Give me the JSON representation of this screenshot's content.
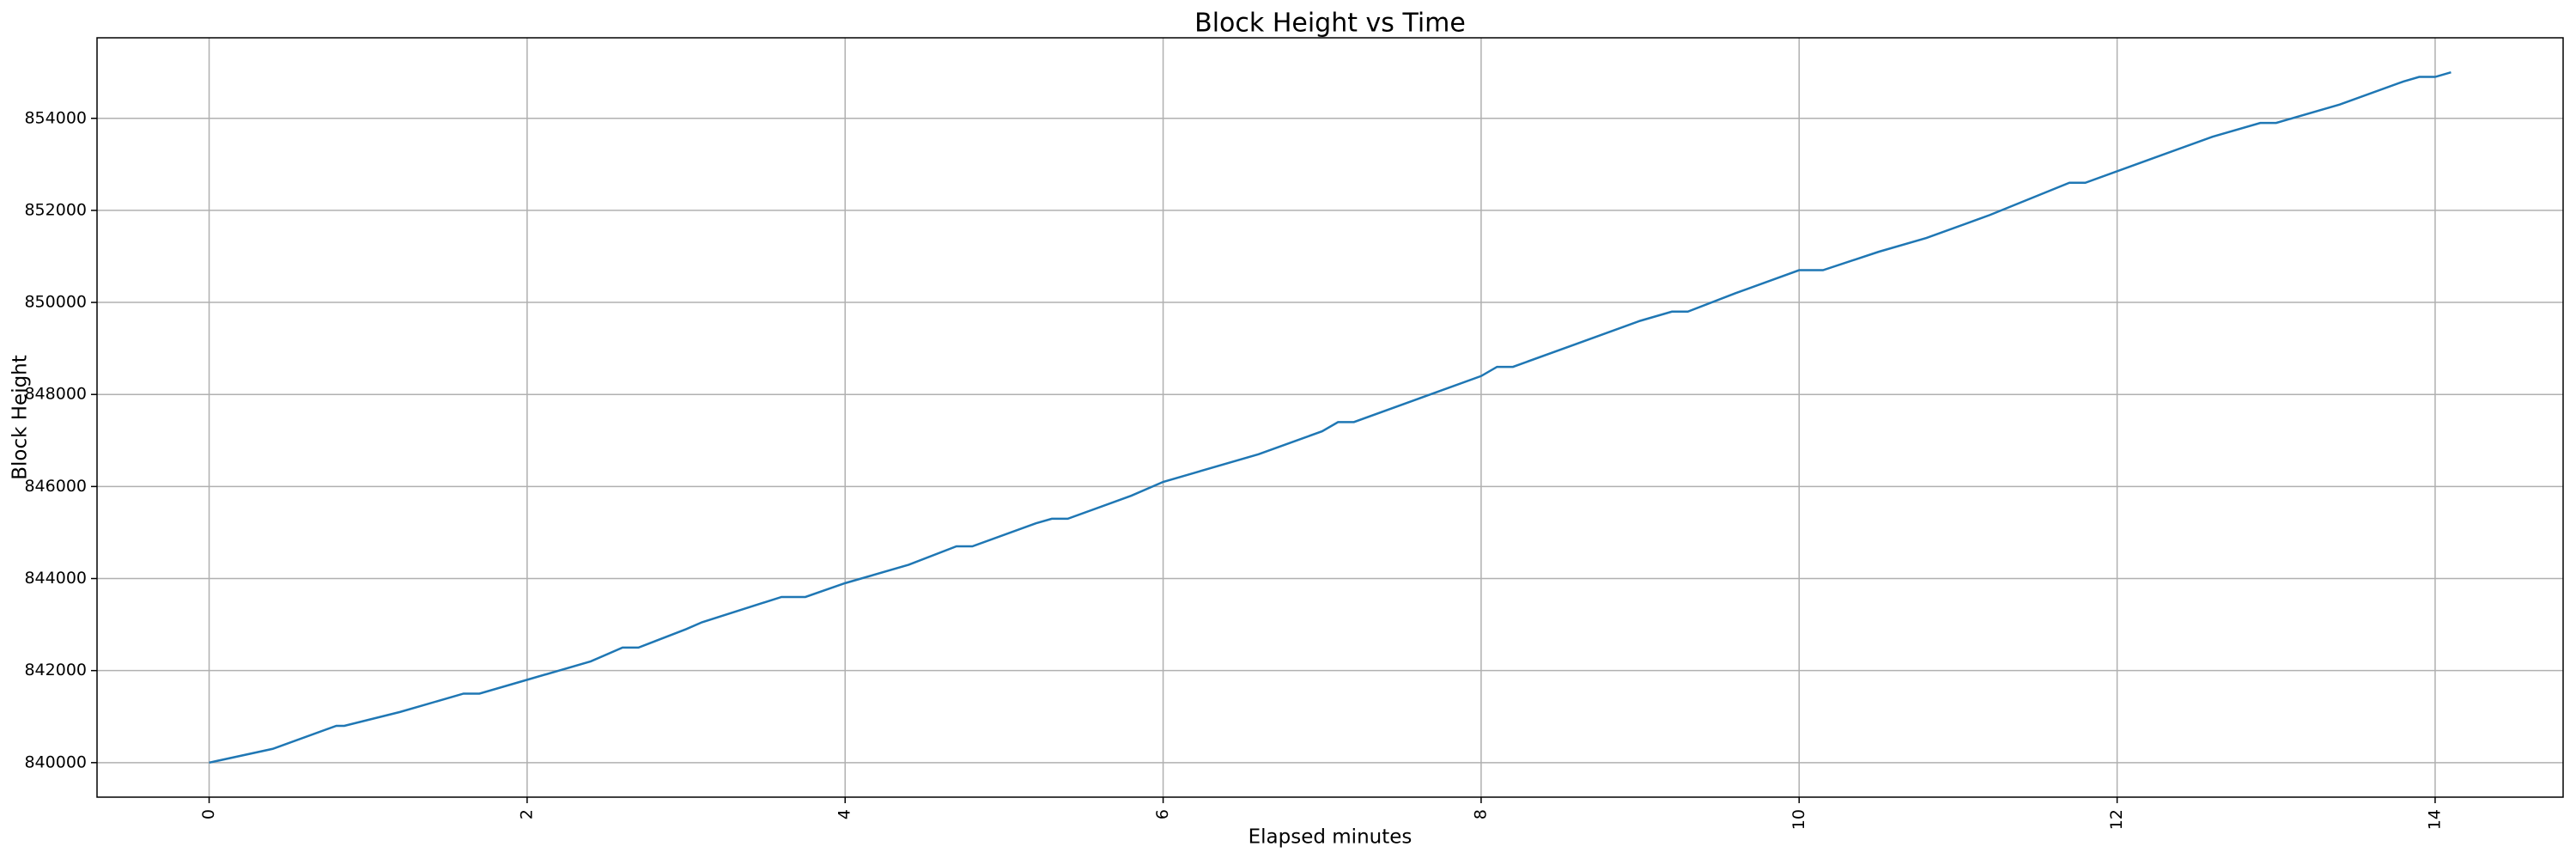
{
  "chart_data": {
    "type": "line",
    "title": "Block Height vs Time",
    "x_label": "Elapsed minutes",
    "y_label": "Block Height",
    "x": [
      0,
      0.4,
      0.8,
      0.85,
      1.2,
      1.6,
      1.7,
      2.0,
      2.4,
      2.6,
      2.7,
      3.0,
      3.1,
      3.6,
      3.75,
      4.0,
      4.4,
      4.7,
      4.8,
      5.2,
      5.3,
      5.4,
      5.8,
      6.0,
      6.2,
      6.6,
      7.0,
      7.1,
      7.2,
      7.6,
      8.0,
      8.1,
      8.2,
      8.6,
      9.0,
      9.2,
      9.3,
      9.6,
      10.0,
      10.15,
      10.5,
      10.8,
      11.2,
      11.7,
      11.8,
      12.2,
      12.6,
      12.9,
      13.0,
      13.4,
      13.8,
      13.9,
      14.0,
      14.1
    ],
    "series": [
      {
        "name": "Block Height",
        "color": "#1f77b4",
        "values": [
          840000,
          840300,
          840800,
          840800,
          841100,
          841500,
          841500,
          841800,
          842200,
          842500,
          842500,
          842900,
          843050,
          843600,
          843600,
          843900,
          844300,
          844700,
          844700,
          845200,
          845300,
          845300,
          845800,
          846100,
          846300,
          846700,
          847200,
          847400,
          847400,
          847900,
          848400,
          848600,
          848600,
          849100,
          849600,
          849800,
          849800,
          850200,
          850700,
          850700,
          851100,
          851400,
          851900,
          852600,
          852600,
          853100,
          853600,
          853900,
          853900,
          854300,
          854800,
          854900,
          854900,
          855000
        ]
      }
    ],
    "xlim": [
      -0.705,
      14.805
    ],
    "ylim": [
      839250,
      855750
    ],
    "xticks": [
      0,
      2,
      4,
      6,
      8,
      10,
      12,
      14
    ],
    "yticks": [
      840000,
      842000,
      844000,
      846000,
      848000,
      850000,
      852000,
      854000
    ],
    "grid": true
  }
}
